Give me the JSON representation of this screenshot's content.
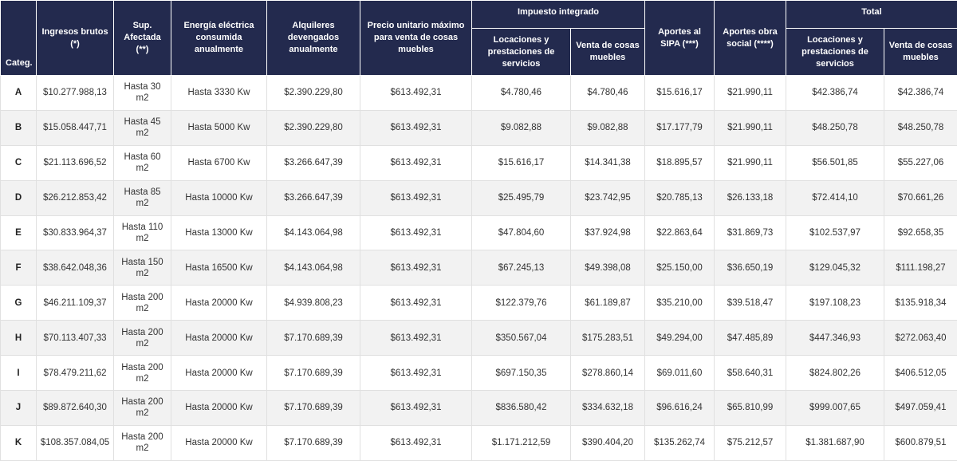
{
  "table": {
    "headers": {
      "categ": "Categ.",
      "ingresos": "Ingresos brutos (*)",
      "superficie": "Sup. Afectada (**)",
      "energia": "Energía eléctrica consumida anualmente",
      "alquileres": "Alquileres devengados anualmente",
      "precio": "Precio unitario máximo para venta de cosas muebles",
      "impuesto_group": "Impuesto integrado",
      "imp_locaciones": "Locaciones y prestaciones de servicios",
      "imp_venta": "Venta de cosas muebles",
      "sipa": "Aportes al SIPA (***)",
      "obra_social": "Aportes obra social (****)",
      "total_group": "Total",
      "tot_locaciones": "Locaciones y prestaciones de servicios",
      "tot_venta": "Venta de cosas muebles"
    },
    "rows": [
      {
        "cat": "A",
        "ingresos": "$10.277.988,13",
        "superficie": "Hasta 30 m2",
        "energia": "Hasta 3330 Kw",
        "alquileres": "$2.390.229,80",
        "precio": "$613.492,31",
        "imp_locaciones": "$4.780,46",
        "imp_venta": "$4.780,46",
        "sipa": "$15.616,17",
        "obra_social": "$21.990,11",
        "tot_locaciones": "$42.386,74",
        "tot_venta": "$42.386,74"
      },
      {
        "cat": "B",
        "ingresos": "$15.058.447,71",
        "superficie": "Hasta 45 m2",
        "energia": "Hasta 5000 Kw",
        "alquileres": "$2.390.229,80",
        "precio": "$613.492,31",
        "imp_locaciones": "$9.082,88",
        "imp_venta": "$9.082,88",
        "sipa": "$17.177,79",
        "obra_social": "$21.990,11",
        "tot_locaciones": "$48.250,78",
        "tot_venta": "$48.250,78"
      },
      {
        "cat": "C",
        "ingresos": "$21.113.696,52",
        "superficie": "Hasta 60 m2",
        "energia": "Hasta 6700 Kw",
        "alquileres": "$3.266.647,39",
        "precio": "$613.492,31",
        "imp_locaciones": "$15.616,17",
        "imp_venta": "$14.341,38",
        "sipa": "$18.895,57",
        "obra_social": "$21.990,11",
        "tot_locaciones": "$56.501,85",
        "tot_venta": "$55.227,06"
      },
      {
        "cat": "D",
        "ingresos": "$26.212.853,42",
        "superficie": "Hasta 85 m2",
        "energia": "Hasta 10000 Kw",
        "alquileres": "$3.266.647,39",
        "precio": "$613.492,31",
        "imp_locaciones": "$25.495,79",
        "imp_venta": "$23.742,95",
        "sipa": "$20.785,13",
        "obra_social": "$26.133,18",
        "tot_locaciones": "$72.414,10",
        "tot_venta": "$70.661,26"
      },
      {
        "cat": "E",
        "ingresos": "$30.833.964,37",
        "superficie": "Hasta 110 m2",
        "energia": "Hasta 13000 Kw",
        "alquileres": "$4.143.064,98",
        "precio": "$613.492,31",
        "imp_locaciones": "$47.804,60",
        "imp_venta": "$37.924,98",
        "sipa": "$22.863,64",
        "obra_social": "$31.869,73",
        "tot_locaciones": "$102.537,97",
        "tot_venta": "$92.658,35"
      },
      {
        "cat": "F",
        "ingresos": "$38.642.048,36",
        "superficie": "Hasta 150 m2",
        "energia": "Hasta 16500 Kw",
        "alquileres": "$4.143.064,98",
        "precio": "$613.492,31",
        "imp_locaciones": "$67.245,13",
        "imp_venta": "$49.398,08",
        "sipa": "$25.150,00",
        "obra_social": "$36.650,19",
        "tot_locaciones": "$129.045,32",
        "tot_venta": "$111.198,27"
      },
      {
        "cat": "G",
        "ingresos": "$46.211.109,37",
        "superficie": "Hasta 200 m2",
        "energia": "Hasta 20000 Kw",
        "alquileres": "$4.939.808,23",
        "precio": "$613.492,31",
        "imp_locaciones": "$122.379,76",
        "imp_venta": "$61.189,87",
        "sipa": "$35.210,00",
        "obra_social": "$39.518,47",
        "tot_locaciones": "$197.108,23",
        "tot_venta": "$135.918,34"
      },
      {
        "cat": "H",
        "ingresos": "$70.113.407,33",
        "superficie": "Hasta 200 m2",
        "energia": "Hasta 20000 Kw",
        "alquileres": "$7.170.689,39",
        "precio": "$613.492,31",
        "imp_locaciones": "$350.567,04",
        "imp_venta": "$175.283,51",
        "sipa": "$49.294,00",
        "obra_social": "$47.485,89",
        "tot_locaciones": "$447.346,93",
        "tot_venta": "$272.063,40"
      },
      {
        "cat": "I",
        "ingresos": "$78.479.211,62",
        "superficie": "Hasta 200 m2",
        "energia": "Hasta 20000 Kw",
        "alquileres": "$7.170.689,39",
        "precio": "$613.492,31",
        "imp_locaciones": "$697.150,35",
        "imp_venta": "$278.860,14",
        "sipa": "$69.011,60",
        "obra_social": "$58.640,31",
        "tot_locaciones": "$824.802,26",
        "tot_venta": "$406.512,05"
      },
      {
        "cat": "J",
        "ingresos": "$89.872.640,30",
        "superficie": "Hasta 200 m2",
        "energia": "Hasta 20000 Kw",
        "alquileres": "$7.170.689,39",
        "precio": "$613.492,31",
        "imp_locaciones": "$836.580,42",
        "imp_venta": "$334.632,18",
        "sipa": "$96.616,24",
        "obra_social": "$65.810,99",
        "tot_locaciones": "$999.007,65",
        "tot_venta": "$497.059,41"
      },
      {
        "cat": "K",
        "ingresos": "$108.357.084,05",
        "superficie": "Hasta 200 m2",
        "energia": "Hasta 20000 Kw",
        "alquileres": "$7.170.689,39",
        "precio": "$613.492,31",
        "imp_locaciones": "$1.171.212,59",
        "imp_venta": "$390.404,20",
        "sipa": "$135.262,74",
        "obra_social": "$75.212,57",
        "tot_locaciones": "$1.381.687,90",
        "tot_venta": "$600.879,51"
      }
    ]
  },
  "colors": {
    "header_bg": "#232a4e",
    "header_text": "#ffffff",
    "row_alt": "#f2f2f2"
  }
}
